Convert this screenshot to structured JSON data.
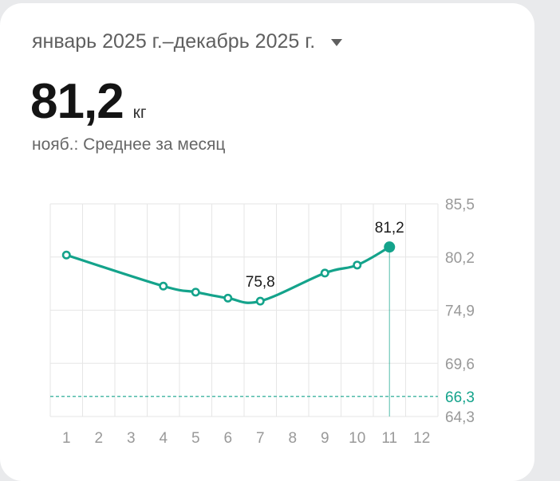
{
  "header": {
    "period": "январь 2025 г.–декабрь 2025 г.",
    "value": "81,2",
    "unit": "кг",
    "subtitle": "нояб.: Среднее за месяц"
  },
  "colors": {
    "accent": "#14a38b",
    "grid": "#e6e6e6",
    "axis_text": "#999999"
  },
  "icons": {
    "period_dropdown": "chevron-down-icon"
  },
  "chart_data": {
    "type": "line",
    "x_ticks": [
      "1",
      "2",
      "3",
      "4",
      "5",
      "6",
      "7",
      "8",
      "9",
      "10",
      "11",
      "12"
    ],
    "y_ticks": [
      "85,5",
      "80,2",
      "74,9",
      "69,6",
      "64,3"
    ],
    "ylim": [
      64.3,
      85.5
    ],
    "xlim": [
      1,
      12
    ],
    "grid": true,
    "series": [
      {
        "points": [
          {
            "x": 1,
            "y": 80.4
          },
          {
            "x": 4,
            "y": 77.3
          },
          {
            "x": 5,
            "y": 76.7
          },
          {
            "x": 6,
            "y": 76.1
          },
          {
            "x": 7,
            "y": 75.8
          },
          {
            "x": 9,
            "y": 78.6
          },
          {
            "x": 10,
            "y": 79.4
          },
          {
            "x": 11,
            "y": 81.2
          }
        ]
      }
    ],
    "data_labels": [
      {
        "x": 7,
        "y": 75.8,
        "text": "75,8"
      },
      {
        "x": 11,
        "y": 81.2,
        "text": "81,2"
      }
    ],
    "reference_line": {
      "y": 66.3,
      "label": "66,3"
    },
    "selected_x": 11
  }
}
